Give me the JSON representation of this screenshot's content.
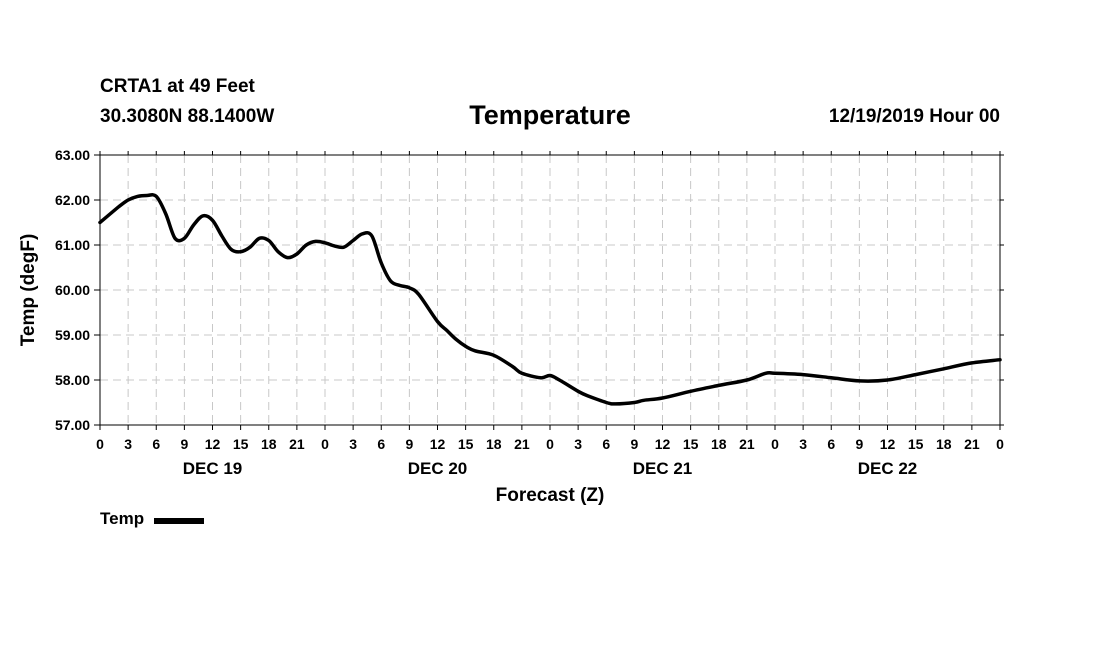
{
  "header": {
    "station": "CRTA1 at 49 Feet",
    "coords": "30.3080N 88.1400W",
    "title": "Temperature",
    "datetime": "12/19/2019 Hour 00"
  },
  "legend": {
    "label": "Temp",
    "color": "#000000"
  },
  "chart_data": {
    "type": "line",
    "title": "Temperature",
    "xlabel": "Forecast (Z)",
    "ylabel": "Temp (degF)",
    "ylim": [
      57.0,
      63.0
    ],
    "yticks": [
      "57.00",
      "58.00",
      "59.00",
      "60.00",
      "61.00",
      "62.00",
      "63.00"
    ],
    "xlim": [
      0,
      96
    ],
    "xtick_labels": [
      "0",
      "3",
      "6",
      "9",
      "12",
      "15",
      "18",
      "21",
      "0",
      "3",
      "6",
      "9",
      "12",
      "15",
      "18",
      "21",
      "0",
      "3",
      "6",
      "9",
      "12",
      "15",
      "18",
      "21",
      "0",
      "3",
      "6",
      "9",
      "12",
      "15",
      "18",
      "21",
      "0"
    ],
    "day_labels": [
      "DEC 19",
      "DEC 20",
      "DEC 21",
      "DEC 22"
    ],
    "grid": true,
    "series": [
      {
        "name": "Temp",
        "color": "#000000",
        "x": [
          0,
          2,
          3,
          4,
          5,
          6,
          7,
          8,
          9,
          10,
          11,
          12,
          13,
          14,
          15,
          16,
          17,
          18,
          19,
          20,
          21,
          22,
          23,
          24,
          25,
          26,
          27,
          28,
          29,
          30,
          31,
          32,
          33,
          34,
          36,
          37,
          38,
          39,
          40,
          42,
          44,
          45,
          47,
          48,
          49,
          51,
          52,
          54,
          55,
          57,
          58,
          60,
          63,
          66,
          69,
          71,
          72,
          75,
          78,
          81,
          84,
          87,
          90,
          93,
          96
        ],
        "values": [
          61.5,
          61.85,
          62.0,
          62.08,
          62.1,
          62.08,
          61.7,
          61.15,
          61.15,
          61.45,
          61.65,
          61.55,
          61.2,
          60.9,
          60.85,
          60.95,
          61.15,
          61.1,
          60.85,
          60.72,
          60.8,
          61.0,
          61.08,
          61.05,
          60.98,
          60.95,
          61.1,
          61.25,
          61.2,
          60.6,
          60.2,
          60.1,
          60.05,
          59.9,
          59.3,
          59.1,
          58.9,
          58.75,
          58.65,
          58.55,
          58.3,
          58.15,
          58.05,
          58.1,
          58.0,
          57.75,
          57.65,
          57.5,
          57.47,
          57.5,
          57.55,
          57.6,
          57.75,
          57.88,
          58.0,
          58.15,
          58.15,
          58.12,
          58.05,
          57.98,
          58.0,
          58.12,
          58.25,
          58.38,
          58.45
        ]
      }
    ]
  }
}
